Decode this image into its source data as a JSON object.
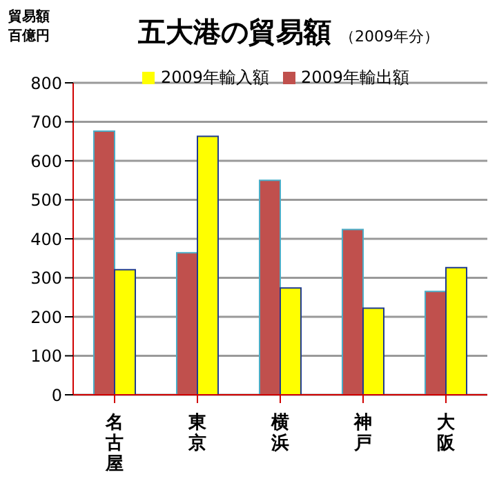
{
  "chart_data": {
    "type": "bar",
    "title": "五大港の貿易額",
    "subtitle": "（2009年分）",
    "ylabel": "貿易額百億円",
    "categories": [
      "名古屋",
      "東京",
      "横浜",
      "神戸",
      "大阪"
    ],
    "series": [
      {
        "name": "2009年輸出額",
        "color": "#c0504d",
        "values": [
          676,
          364,
          550,
          424,
          265
        ]
      },
      {
        "name": "2009年輸入額",
        "color": "#ffff00",
        "values": [
          321,
          663,
          274,
          222,
          326
        ]
      }
    ],
    "ylim": [
      0,
      800
    ],
    "yticks": [
      0,
      100,
      200,
      300,
      400,
      500,
      600,
      700,
      800
    ],
    "grid": "y",
    "legend": "top"
  }
}
